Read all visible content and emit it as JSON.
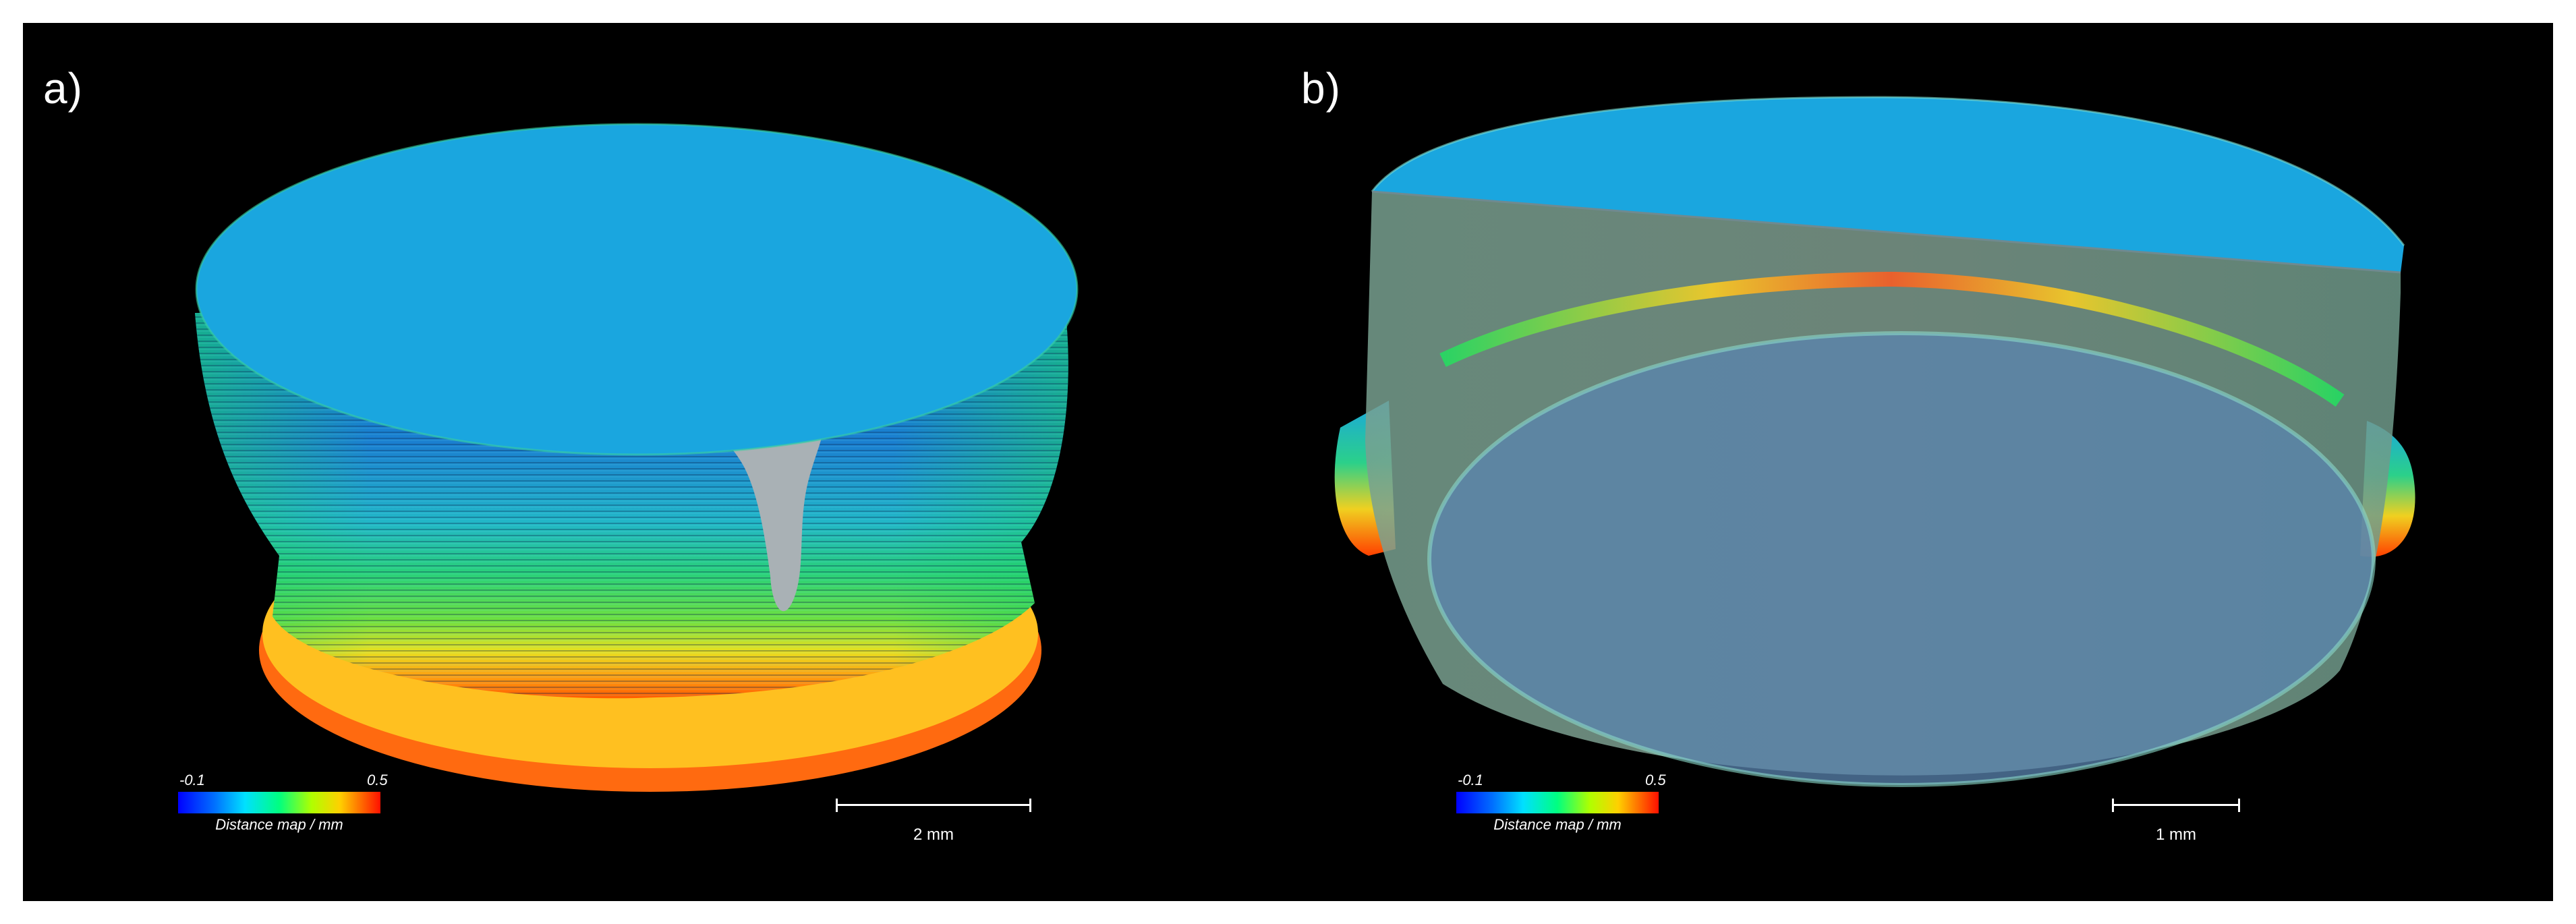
{
  "panels": [
    {
      "label": "a)",
      "legend": {
        "min": "-0.1",
        "max": "0.5",
        "title": "Distance map / mm"
      },
      "scale_bar": "2 mm"
    },
    {
      "label": "b)",
      "legend": {
        "min": "-0.1",
        "max": "0.5",
        "title": "Distance map / mm"
      },
      "scale_bar": "1 mm"
    }
  ],
  "colors": {
    "background": "#000000",
    "surface_blue": "#1aa7e0",
    "defect_grey": "#a8b0b4",
    "colormap": [
      "#0000ff",
      "#00b4ff",
      "#00ffa0",
      "#20e020",
      "#ffff00",
      "#ff8000",
      "#ff0000"
    ]
  }
}
